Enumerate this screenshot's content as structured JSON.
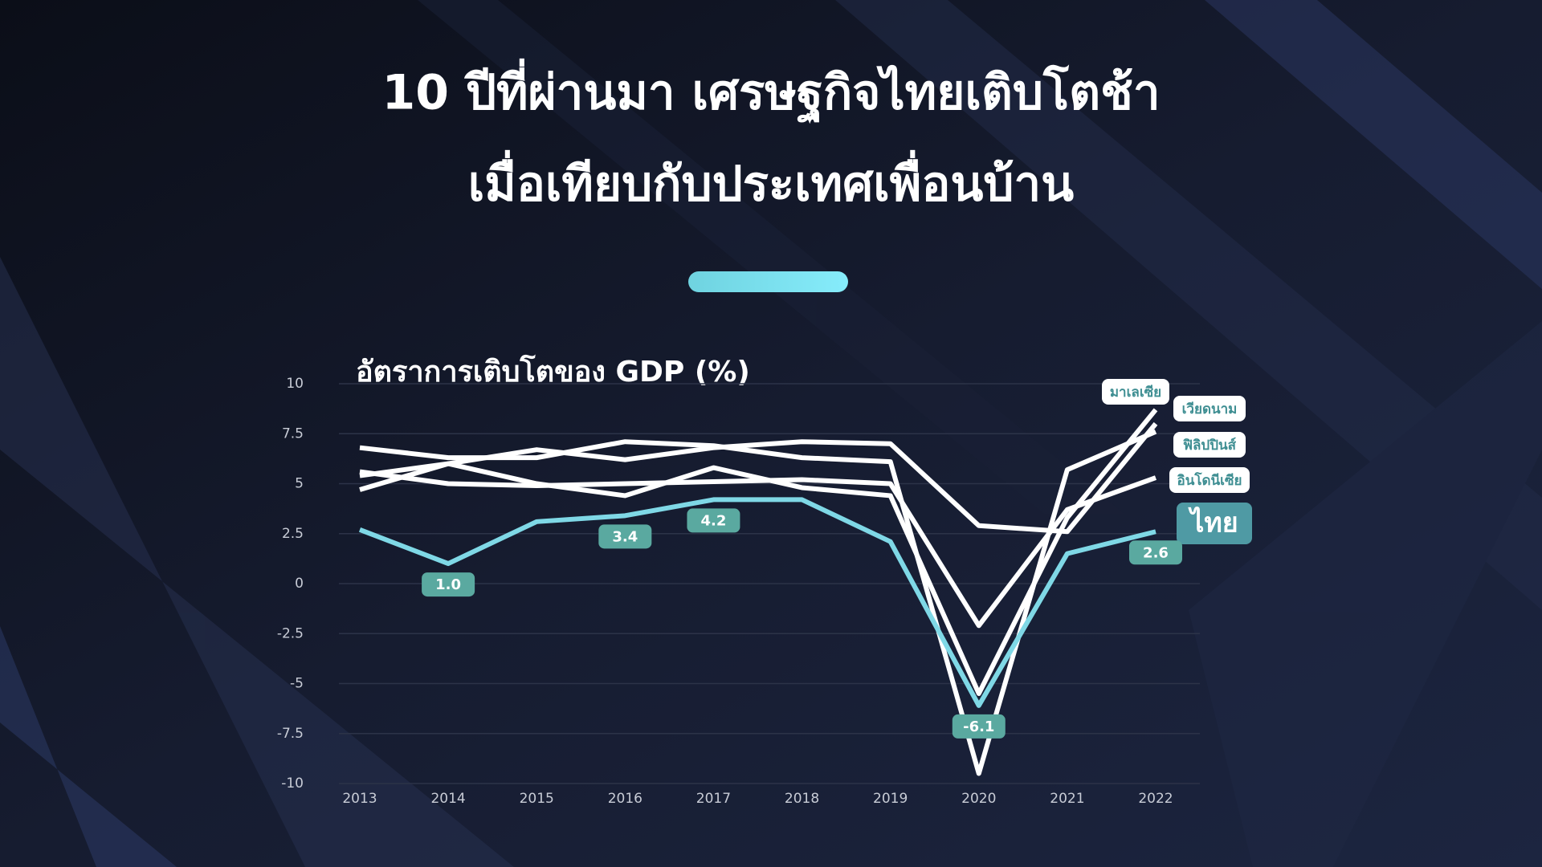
{
  "chart_data": {
    "type": "line",
    "title": [
      "10 ปีที่ผ่านมา เศรษฐกิจไทยเติบโตช้า",
      "เมื่อเทียบกับประเทศเพื่อนบ้าน"
    ],
    "subtitle": "อัตราการเติบโตของ GDP (%)",
    "categories": [
      "2013",
      "2014",
      "2015",
      "2016",
      "2017",
      "2018",
      "2019",
      "2020",
      "2021",
      "2022"
    ],
    "series": [
      {
        "name": "มาเลเซีย",
        "color": "#ffffff",
        "values": [
          4.7,
          6.0,
          5.0,
          4.4,
          5.8,
          4.8,
          4.4,
          -5.5,
          3.3,
          8.7
        ]
      },
      {
        "name": "เวียดนาม",
        "color": "#ffffff",
        "values": [
          5.4,
          6.0,
          6.7,
          6.2,
          6.8,
          7.1,
          7.0,
          2.9,
          2.6,
          8.0
        ]
      },
      {
        "name": "ฟิลิปปินส์",
        "color": "#ffffff",
        "values": [
          6.8,
          6.3,
          6.3,
          7.1,
          6.9,
          6.3,
          6.1,
          -9.5,
          5.7,
          7.6
        ]
      },
      {
        "name": "อินโดนีเซีย",
        "color": "#ffffff",
        "values": [
          5.6,
          5.0,
          4.9,
          5.0,
          5.1,
          5.2,
          5.0,
          -2.1,
          3.7,
          5.3
        ]
      },
      {
        "name": "ไทย",
        "color": "#7fd8e6",
        "values": [
          2.7,
          1.0,
          3.1,
          3.4,
          4.2,
          4.2,
          2.1,
          -6.1,
          1.5,
          2.6
        ],
        "value_labels": [
          null,
          "1.0",
          null,
          "3.4",
          "4.2",
          null,
          null,
          "-6.1",
          null,
          "2.6"
        ]
      }
    ],
    "ylim": [
      -10,
      10
    ],
    "yticks": [
      10,
      7.5,
      5,
      2.5,
      0,
      -2.5,
      -5,
      -7.5,
      -10
    ],
    "grid": true
  }
}
